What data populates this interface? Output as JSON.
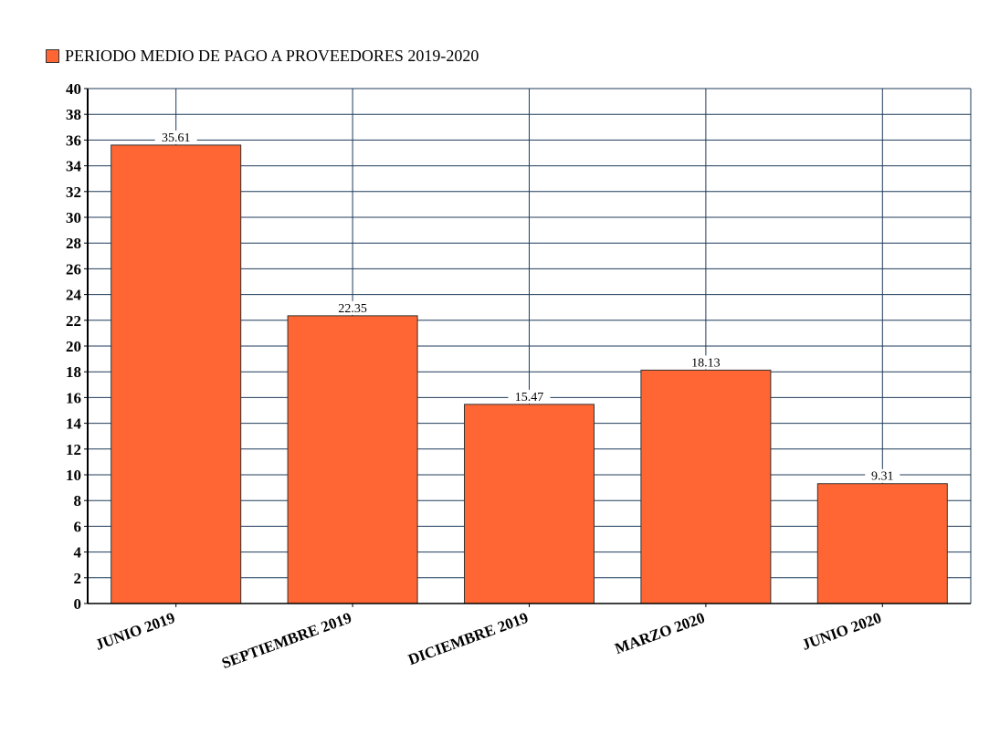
{
  "chart_data": {
    "type": "bar",
    "title": "",
    "legend": {
      "entries": [
        "PERIODO MEDIO DE PAGO A PROVEEDORES 2019-2020"
      ],
      "placement": "top-left"
    },
    "categories": [
      "JUNIO 2019",
      "SEPTIEMBRE 2019",
      "DICIEMBRE 2019",
      "MARZO 2020",
      "JUNIO 2020"
    ],
    "series": [
      {
        "name": "PERIODO MEDIO DE PAGO A PROVEEDORES 2019-2020",
        "values": [
          35.61,
          22.35,
          15.47,
          18.13,
          9.31
        ],
        "color": "#FF6633"
      }
    ],
    "data_labels": [
      "35.61",
      "22.35",
      "15.47",
      "18.13",
      "9.31"
    ],
    "xlabel": "",
    "ylabel": "",
    "ylim": [
      0,
      40
    ],
    "yticks": [
      0,
      2,
      4,
      6,
      8,
      10,
      12,
      14,
      16,
      18,
      20,
      22,
      24,
      26,
      28,
      30,
      32,
      34,
      36,
      38,
      40
    ],
    "grid": true,
    "grid_color": "#1F3B5A"
  }
}
